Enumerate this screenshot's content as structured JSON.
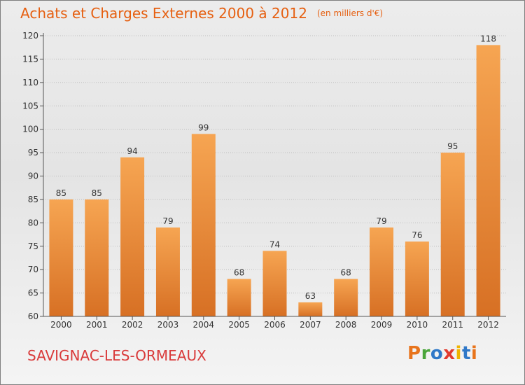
{
  "header": {
    "title": "Achats et Charges Externes 2000 à 2012",
    "unit": "(en milliers d'€)"
  },
  "place": "SAVIGNAC-LES-ORMEAUX",
  "logo": {
    "text": "Proxiti"
  },
  "colors": {
    "title": "#e65f10",
    "place": "#d93a3a",
    "bar_top": "#f6a552",
    "bar_bottom": "#d77024",
    "axis": "#555555",
    "grid": "#bdbdbd"
  },
  "chart_data": {
    "type": "bar",
    "title": "Achats et Charges Externes 2000 à 2012",
    "subtitle": "(en milliers d'€)",
    "categories": [
      "2000",
      "2001",
      "2002",
      "2003",
      "2004",
      "2005",
      "2006",
      "2007",
      "2008",
      "2009",
      "2010",
      "2011",
      "2012"
    ],
    "values": [
      85,
      85,
      94,
      79,
      99,
      68,
      74,
      63,
      68,
      79,
      76,
      95,
      118
    ],
    "ylim": [
      60,
      120
    ],
    "yticks": [
      60,
      65,
      70,
      75,
      80,
      85,
      90,
      95,
      100,
      105,
      110,
      115,
      120
    ],
    "grid": true,
    "data_labels": true
  }
}
